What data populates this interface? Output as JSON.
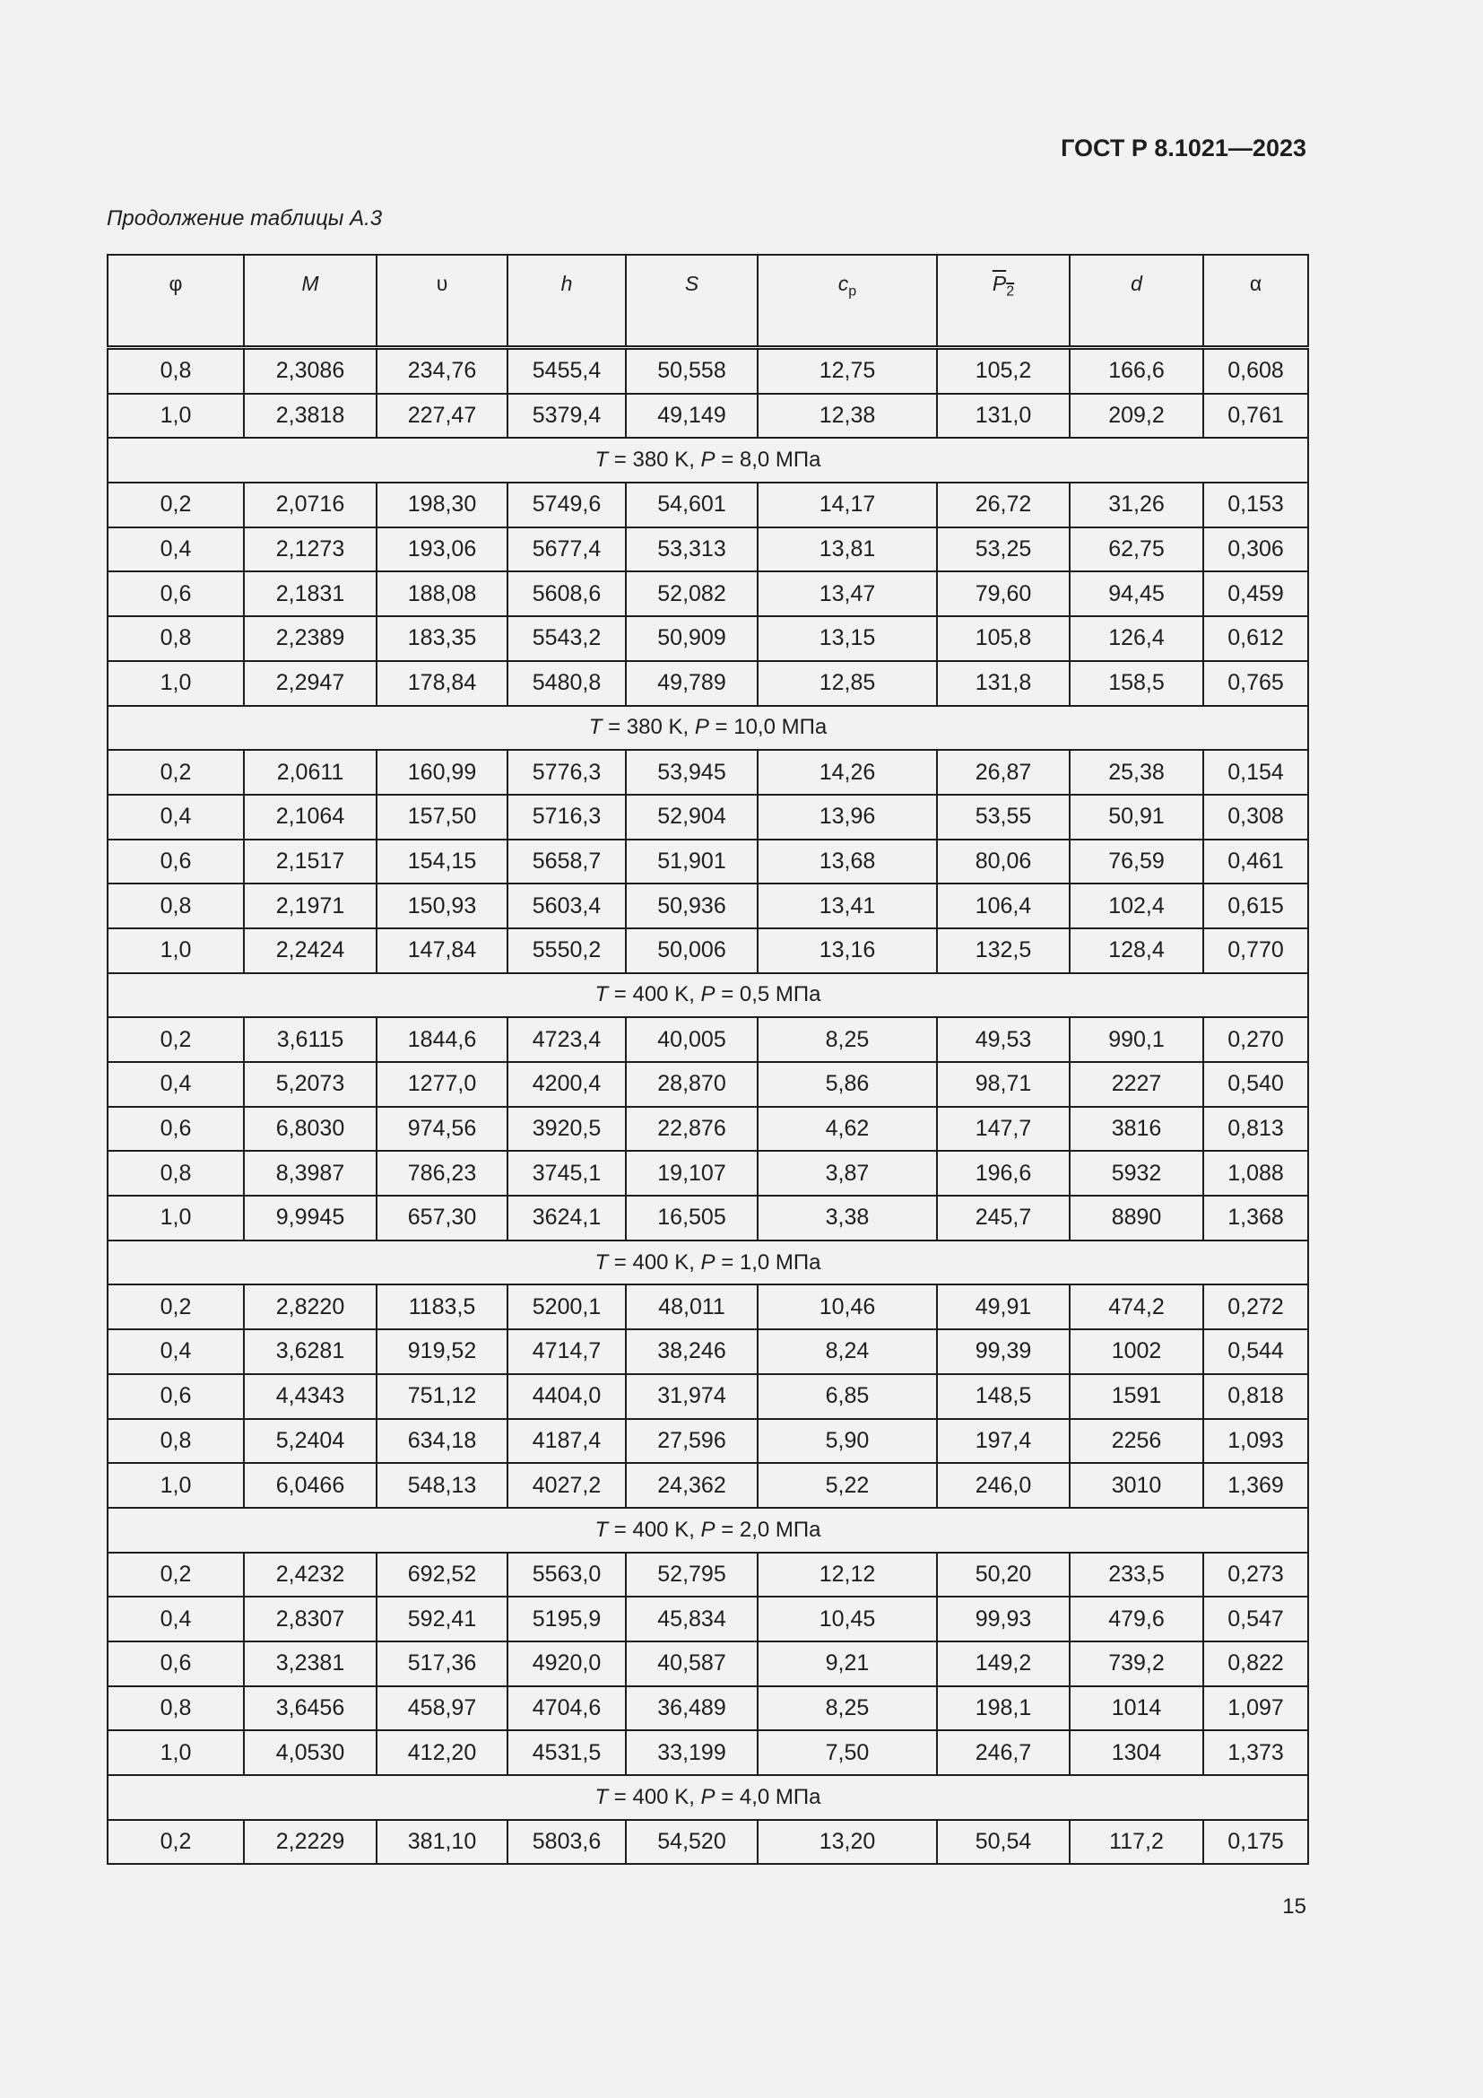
{
  "header": {
    "doc_code": "ГОСТ Р 8.1021—2023",
    "caption": "Продолжение таблицы А.3"
  },
  "table": {
    "columns": [
      {
        "label": "φ",
        "sub": ""
      },
      {
        "label": "M",
        "sub": ""
      },
      {
        "label": "υ",
        "sub": ""
      },
      {
        "label": "h",
        "sub": ""
      },
      {
        "label": "S",
        "sub": ""
      },
      {
        "label": "c",
        "sub": "p"
      },
      {
        "label": "P",
        "sub": "2",
        "overline": true
      },
      {
        "label": "d",
        "sub": ""
      },
      {
        "label": "α",
        "sub": ""
      }
    ],
    "rows": [
      {
        "cells": [
          "0,8",
          "2,3086",
          "234,76",
          "5455,4",
          "50,558",
          "12,75",
          "105,2",
          "166,6",
          "0,608"
        ]
      },
      {
        "cells": [
          "1,0",
          "2,3818",
          "227,47",
          "5379,4",
          "49,149",
          "12,38",
          "131,0",
          "209,2",
          "0,761"
        ]
      },
      {
        "section": {
          "T": "T",
          "t_val": " = 380 K, ",
          "P": "P",
          "p_val": " = 8,0 МПа"
        }
      },
      {
        "cells": [
          "0,2",
          "2,0716",
          "198,30",
          "5749,6",
          "54,601",
          "14,17",
          "26,72",
          "31,26",
          "0,153"
        ]
      },
      {
        "cells": [
          "0,4",
          "2,1273",
          "193,06",
          "5677,4",
          "53,313",
          "13,81",
          "53,25",
          "62,75",
          "0,306"
        ]
      },
      {
        "cells": [
          "0,6",
          "2,1831",
          "188,08",
          "5608,6",
          "52,082",
          "13,47",
          "79,60",
          "94,45",
          "0,459"
        ]
      },
      {
        "cells": [
          "0,8",
          "2,2389",
          "183,35",
          "5543,2",
          "50,909",
          "13,15",
          "105,8",
          "126,4",
          "0,612"
        ]
      },
      {
        "cells": [
          "1,0",
          "2,2947",
          "178,84",
          "5480,8",
          "49,789",
          "12,85",
          "131,8",
          "158,5",
          "0,765"
        ]
      },
      {
        "section": {
          "T": "T",
          "t_val": " = 380 K, ",
          "P": "P",
          "p_val": " = 10,0 МПа"
        }
      },
      {
        "cells": [
          "0,2",
          "2,0611",
          "160,99",
          "5776,3",
          "53,945",
          "14,26",
          "26,87",
          "25,38",
          "0,154"
        ]
      },
      {
        "cells": [
          "0,4",
          "2,1064",
          "157,50",
          "5716,3",
          "52,904",
          "13,96",
          "53,55",
          "50,91",
          "0,308"
        ]
      },
      {
        "cells": [
          "0,6",
          "2,1517",
          "154,15",
          "5658,7",
          "51,901",
          "13,68",
          "80,06",
          "76,59",
          "0,461"
        ]
      },
      {
        "cells": [
          "0,8",
          "2,1971",
          "150,93",
          "5603,4",
          "50,936",
          "13,41",
          "106,4",
          "102,4",
          "0,615"
        ]
      },
      {
        "cells": [
          "1,0",
          "2,2424",
          "147,84",
          "5550,2",
          "50,006",
          "13,16",
          "132,5",
          "128,4",
          "0,770"
        ]
      },
      {
        "section": {
          "T": "T",
          "t_val": " = 400 K, ",
          "P": "P",
          "p_val": " = 0,5 МПа"
        }
      },
      {
        "cells": [
          "0,2",
          "3,6115",
          "1844,6",
          "4723,4",
          "40,005",
          "8,25",
          "49,53",
          "990,1",
          "0,270"
        ]
      },
      {
        "cells": [
          "0,4",
          "5,2073",
          "1277,0",
          "4200,4",
          "28,870",
          "5,86",
          "98,71",
          "2227",
          "0,540"
        ]
      },
      {
        "cells": [
          "0,6",
          "6,8030",
          "974,56",
          "3920,5",
          "22,876",
          "4,62",
          "147,7",
          "3816",
          "0,813"
        ]
      },
      {
        "cells": [
          "0,8",
          "8,3987",
          "786,23",
          "3745,1",
          "19,107",
          "3,87",
          "196,6",
          "5932",
          "1,088"
        ]
      },
      {
        "cells": [
          "1,0",
          "9,9945",
          "657,30",
          "3624,1",
          "16,505",
          "3,38",
          "245,7",
          "8890",
          "1,368"
        ]
      },
      {
        "section": {
          "T": "T",
          "t_val": " = 400 K, ",
          "P": "P",
          "p_val": " = 1,0 МПа"
        }
      },
      {
        "cells": [
          "0,2",
          "2,8220",
          "1183,5",
          "5200,1",
          "48,011",
          "10,46",
          "49,91",
          "474,2",
          "0,272"
        ]
      },
      {
        "cells": [
          "0,4",
          "3,6281",
          "919,52",
          "4714,7",
          "38,246",
          "8,24",
          "99,39",
          "1002",
          "0,544"
        ]
      },
      {
        "cells": [
          "0,6",
          "4,4343",
          "751,12",
          "4404,0",
          "31,974",
          "6,85",
          "148,5",
          "1591",
          "0,818"
        ]
      },
      {
        "cells": [
          "0,8",
          "5,2404",
          "634,18",
          "4187,4",
          "27,596",
          "5,90",
          "197,4",
          "2256",
          "1,093"
        ]
      },
      {
        "cells": [
          "1,0",
          "6,0466",
          "548,13",
          "4027,2",
          "24,362",
          "5,22",
          "246,0",
          "3010",
          "1,369"
        ]
      },
      {
        "section": {
          "T": "T",
          "t_val": " = 400 K, ",
          "P": "P",
          "p_val": " = 2,0 МПа"
        }
      },
      {
        "cells": [
          "0,2",
          "2,4232",
          "692,52",
          "5563,0",
          "52,795",
          "12,12",
          "50,20",
          "233,5",
          "0,273"
        ]
      },
      {
        "cells": [
          "0,4",
          "2,8307",
          "592,41",
          "5195,9",
          "45,834",
          "10,45",
          "99,93",
          "479,6",
          "0,547"
        ]
      },
      {
        "cells": [
          "0,6",
          "3,2381",
          "517,36",
          "4920,0",
          "40,587",
          "9,21",
          "149,2",
          "739,2",
          "0,822"
        ]
      },
      {
        "cells": [
          "0,8",
          "3,6456",
          "458,97",
          "4704,6",
          "36,489",
          "8,25",
          "198,1",
          "1014",
          "1,097"
        ]
      },
      {
        "cells": [
          "1,0",
          "4,0530",
          "412,20",
          "4531,5",
          "33,199",
          "7,50",
          "246,7",
          "1304",
          "1,373"
        ]
      },
      {
        "section": {
          "T": "T",
          "t_val": " = 400 K, ",
          "P": "P",
          "p_val": " = 4,0 МПа"
        }
      },
      {
        "cells": [
          "0,2",
          "2,2229",
          "381,10",
          "5803,6",
          "54,520",
          "13,20",
          "50,54",
          "117,2",
          "0,175"
        ]
      }
    ]
  },
  "footer": {
    "page_number": "15"
  }
}
